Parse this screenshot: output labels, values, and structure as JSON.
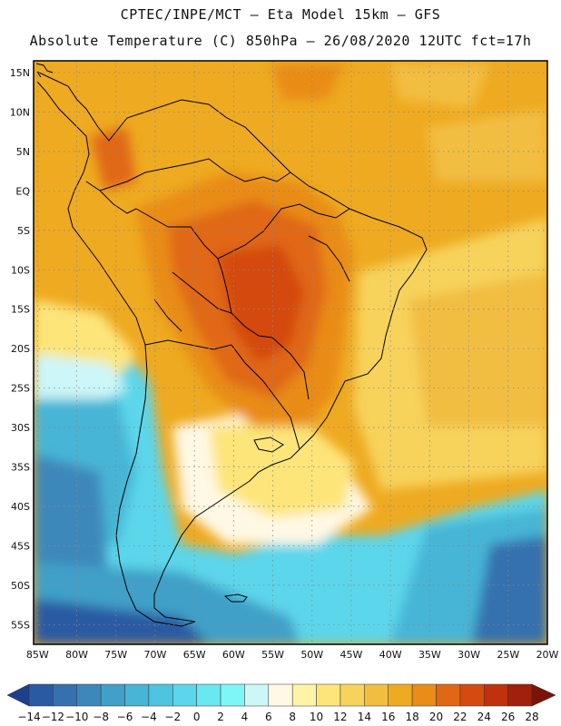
{
  "header": {
    "line1": "CPTEC/INPE/MCT –  Eta Model 15km – GFS",
    "line2": "Absolute Temperature (C) 850hPa – 26/08/2020 12UTC fct=17h"
  },
  "map": {
    "lat_labels": [
      "15N",
      "10N",
      "5N",
      "EQ",
      "5S",
      "10S",
      "15S",
      "20S",
      "25S",
      "30S",
      "35S",
      "40S",
      "45S",
      "50S",
      "55S"
    ],
    "lat_values": [
      15,
      10,
      5,
      0,
      -5,
      -10,
      -15,
      -20,
      -25,
      -30,
      -35,
      -40,
      -45,
      -50,
      -55
    ],
    "lon_labels": [
      "85W",
      "80W",
      "75W",
      "70W",
      "65W",
      "60W",
      "55W",
      "50W",
      "45W",
      "40W",
      "35W",
      "30W",
      "25W",
      "20W"
    ],
    "lon_values": [
      -85,
      -80,
      -75,
      -70,
      -65,
      -60,
      -55,
      -50,
      -45,
      -40,
      -35,
      -30,
      -25,
      -20
    ],
    "extent": {
      "lon_min": -85.5,
      "lon_max": -20,
      "lat_min": -57.5,
      "lat_max": 16.5
    }
  },
  "colorbar": {
    "labels": [
      "-14",
      "-12",
      "-10",
      "-8",
      "-6",
      "-4",
      "-2",
      "0",
      "2",
      "4",
      "6",
      "8",
      "10",
      "12",
      "14",
      "16",
      "18",
      "20",
      "22",
      "24",
      "26",
      "28"
    ],
    "colors": [
      "#1d3f8e",
      "#2a5aa2",
      "#3571ae",
      "#3d88bb",
      "#41a0c8",
      "#46b5d6",
      "#4dc5e0",
      "#5bd6ea",
      "#6ae8f2",
      "#7df6f8",
      "#ccf6f8",
      "#fff8e4",
      "#fef3a6",
      "#fde57a",
      "#f7d35c",
      "#f2be42",
      "#eeaa20",
      "#e98c18",
      "#e06814",
      "#d44a10",
      "#c0320e",
      "#a0200c",
      "#7a1408"
    ]
  }
}
